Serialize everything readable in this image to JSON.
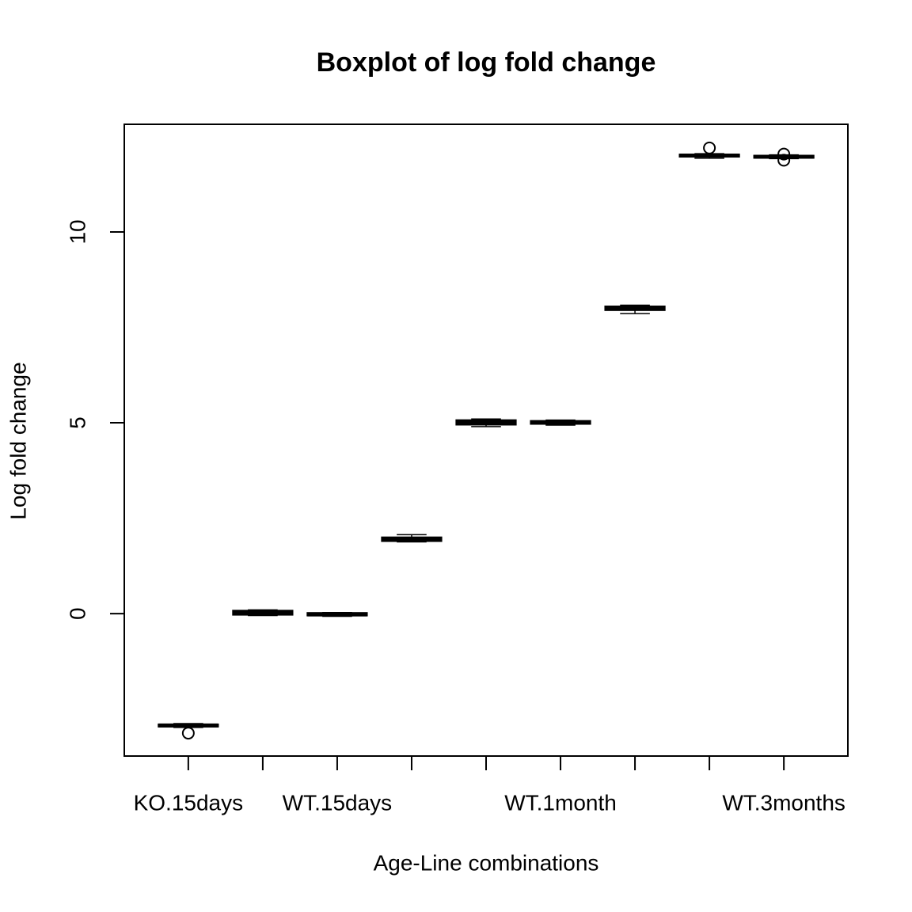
{
  "chart_data": {
    "type": "boxplot",
    "title": "Boxplot of log fold change",
    "x_label": "Age-Line combinations",
    "y_label": "Log fold change",
    "categories": [
      "KO.15days",
      null,
      "WT.15days",
      null,
      null,
      "WT.1month",
      null,
      null,
      "WT.3months"
    ],
    "boxes": [
      {
        "min": -2.98,
        "q1": -2.96,
        "median": -2.93,
        "q3": -2.9,
        "max": -2.88,
        "outliers": [
          -3.13
        ]
      },
      {
        "min": -0.05,
        "q1": -0.03,
        "median": 0.02,
        "q3": 0.08,
        "max": 0.1,
        "outliers": []
      },
      {
        "min": -0.07,
        "q1": -0.05,
        "median": -0.02,
        "q3": 0.02,
        "max": 0.03,
        "outliers": []
      },
      {
        "min": 1.88,
        "q1": 1.9,
        "median": 1.95,
        "q3": 2.0,
        "max": 2.07,
        "outliers": []
      },
      {
        "min": 4.9,
        "q1": 4.95,
        "median": 5.0,
        "q3": 5.07,
        "max": 5.1,
        "outliers": []
      },
      {
        "min": 4.94,
        "q1": 4.97,
        "median": 5.0,
        "q3": 5.05,
        "max": 5.07,
        "outliers": []
      },
      {
        "min": 7.86,
        "q1": 7.95,
        "median": 8.0,
        "q3": 8.05,
        "max": 8.08,
        "outliers": []
      },
      {
        "min": 11.93,
        "q1": 11.97,
        "median": 12.0,
        "q3": 12.03,
        "max": 12.05,
        "outliers": [
          12.2
        ]
      },
      {
        "min": 11.92,
        "q1": 11.94,
        "median": 11.97,
        "q3": 12.0,
        "max": 12.02,
        "outliers": [
          12.04,
          11.88
        ]
      }
    ],
    "color": "#ffffff",
    "ylim": [
      -3.73,
      12.82
    ],
    "yticks": [
      0,
      5,
      10
    ]
  }
}
